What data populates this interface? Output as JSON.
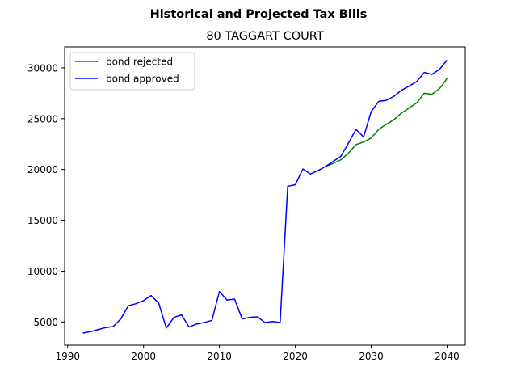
{
  "chart_data": {
    "type": "line",
    "suptitle": "Historical and Projected Tax Bills",
    "title": "80 TAGGART COURT",
    "xlabel": "",
    "ylabel": "",
    "xlim": [
      1989.6,
      2042.4
    ],
    "ylim": [
      2720,
      32060
    ],
    "xticks": [
      1990,
      2000,
      2010,
      2020,
      2030,
      2040
    ],
    "yticks": [
      5000,
      10000,
      15000,
      20000,
      25000,
      30000
    ],
    "grid": false,
    "legend_position": "top-left",
    "series": [
      {
        "name": "bond rejected",
        "color": "#008000",
        "x": [
          2024,
          2025,
          2026,
          2027,
          2028,
          2029,
          2030,
          2031,
          2032,
          2033,
          2034,
          2035,
          2036,
          2037,
          2038,
          2039,
          2040
        ],
        "y": [
          20300,
          20600,
          20950,
          21600,
          22450,
          22700,
          23100,
          23950,
          24450,
          24900,
          25550,
          26050,
          26550,
          27500,
          27400,
          27950,
          28950
        ]
      },
      {
        "name": "bond approved",
        "color": "#0000ff",
        "x": [
          1992,
          1993,
          1994,
          1995,
          1996,
          1997,
          1998,
          1999,
          2000,
          2001,
          2002,
          2003,
          2004,
          2005,
          2006,
          2007,
          2008,
          2009,
          2010,
          2011,
          2012,
          2013,
          2014,
          2015,
          2016,
          2017,
          2018,
          2019,
          2020,
          2021,
          2022,
          2023,
          2024,
          2025,
          2026,
          2027,
          2028,
          2029,
          2030,
          2031,
          2032,
          2033,
          2034,
          2035,
          2036,
          2037,
          2038,
          2039,
          2040
        ],
        "y": [
          3900,
          4050,
          4250,
          4450,
          4550,
          5300,
          6600,
          6800,
          7100,
          7600,
          6850,
          4400,
          5450,
          5700,
          4500,
          4800,
          4950,
          5150,
          8000,
          7150,
          7250,
          5300,
          5450,
          5500,
          4950,
          5050,
          4950,
          18350,
          18500,
          20050,
          19550,
          19900,
          20300,
          20800,
          21300,
          22600,
          23950,
          23200,
          25700,
          26700,
          26800,
          27200,
          27800,
          28200,
          28650,
          29550,
          29350,
          29850,
          30750
        ]
      }
    ]
  }
}
